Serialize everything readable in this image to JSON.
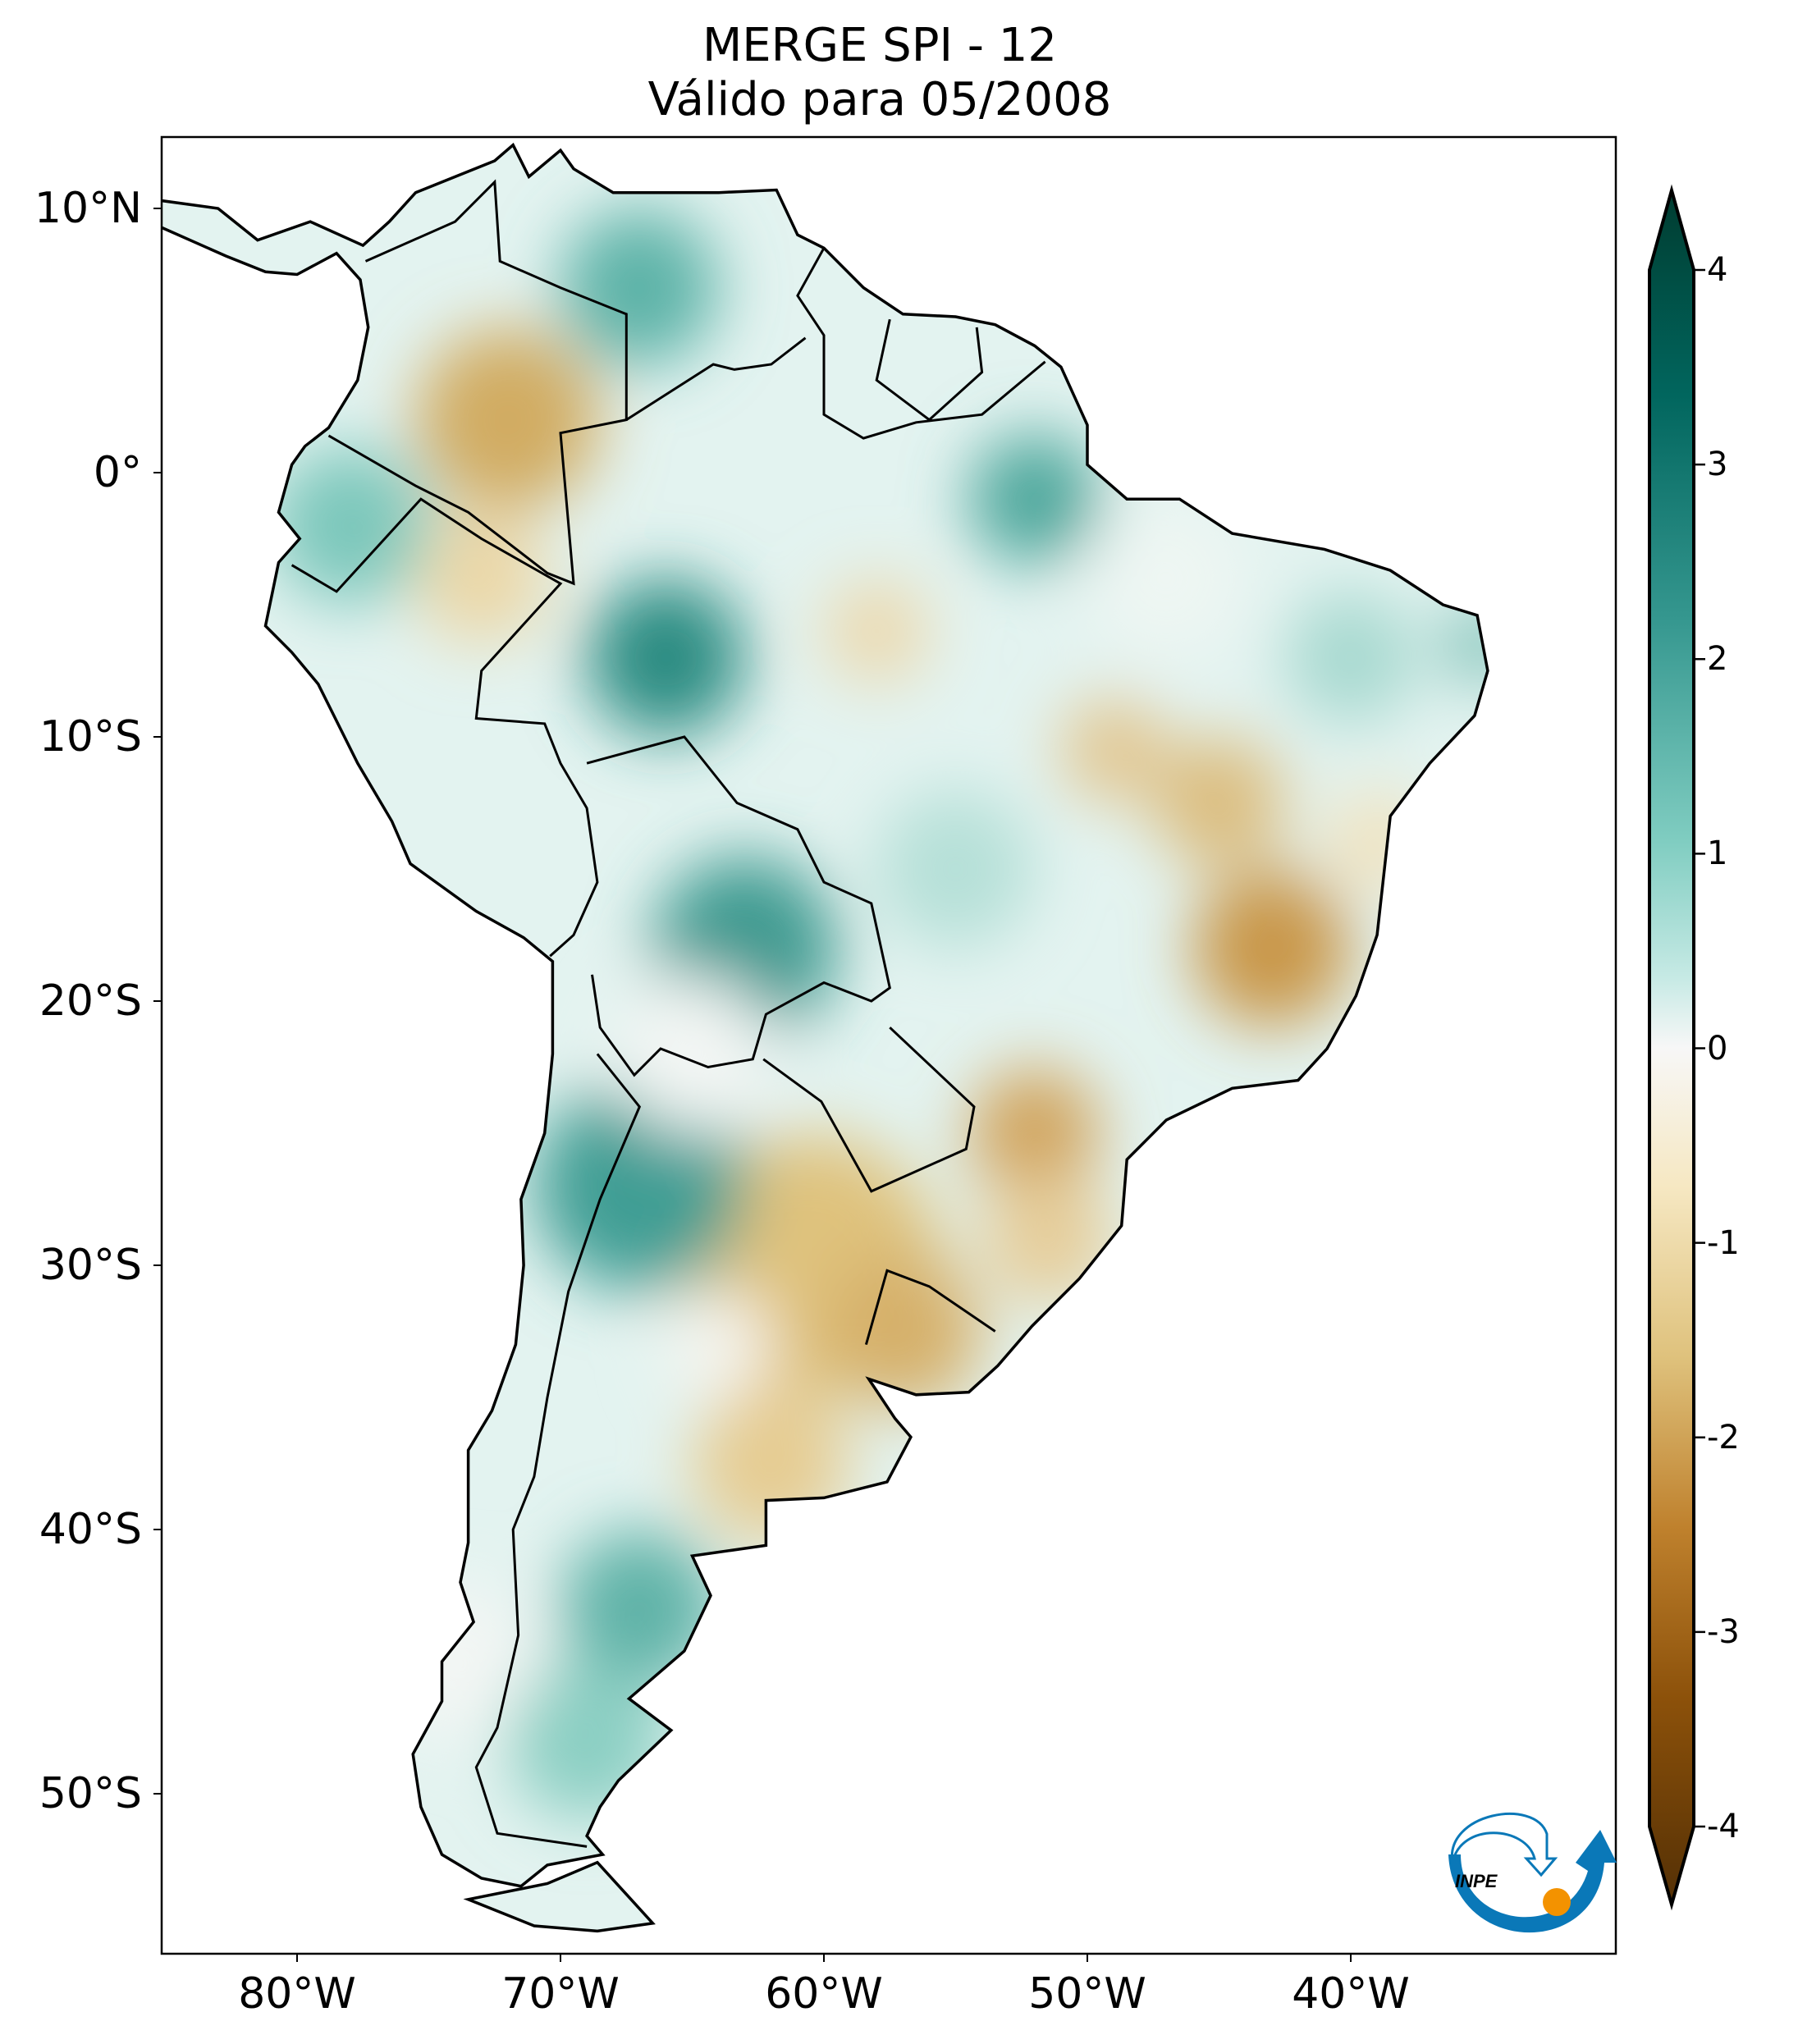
{
  "title": {
    "line1": "MERGE   SPI - 12",
    "line2": "Válido para 05/2008"
  },
  "axes": {
    "lat_ticks": [
      "10°N",
      "0°",
      "10°S",
      "20°S",
      "30°S",
      "40°S",
      "50°S"
    ],
    "lon_ticks": [
      "80°W",
      "70°W",
      "60°W",
      "50°W",
      "40°W"
    ]
  },
  "colorbar": {
    "ticks": [
      "4",
      "3",
      "2",
      "1",
      "0",
      "-1",
      "-2",
      "-3",
      "-4"
    ],
    "range": [
      -4,
      4
    ],
    "extend": "both",
    "colors": [
      "#543005",
      "#8c510a",
      "#bf812d",
      "#dfc27d",
      "#f6e8c3",
      "#f5f5f5",
      "#c7eae5",
      "#80cdc1",
      "#35978f",
      "#01665e",
      "#003c30"
    ]
  },
  "logo": {
    "text": "INPE",
    "colors": {
      "blue": "#0a78b8",
      "orange": "#f39200"
    }
  }
}
